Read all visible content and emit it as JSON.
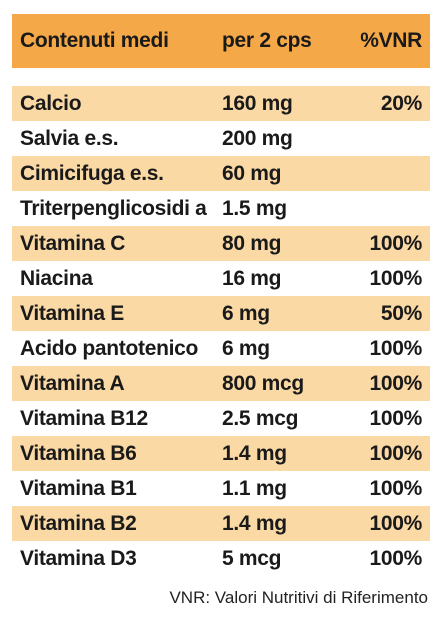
{
  "table": {
    "headers": [
      "Contenuti medi",
      "per 2 cps",
      "%VNR"
    ],
    "rows": [
      {
        "name": "Calcio",
        "amount": "160 mg",
        "vnr": "20%"
      },
      {
        "name": "Salvia e.s.",
        "amount": "200 mg",
        "vnr": ""
      },
      {
        "name": "Cimicifuga e.s.",
        "amount": "60 mg",
        "vnr": ""
      },
      {
        "name": "Triterpenglicosidi a",
        "amount": "1.5 mg",
        "vnr": ""
      },
      {
        "name": "Vitamina C",
        "amount": "80 mg",
        "vnr": "100%"
      },
      {
        "name": "Niacina",
        "amount": "16 mg",
        "vnr": "100%"
      },
      {
        "name": "Vitamina E",
        "amount": "6 mg",
        "vnr": "50%"
      },
      {
        "name": "Acido pantotenico",
        "amount": "6 mg",
        "vnr": "100%"
      },
      {
        "name": "Vitamina A",
        "amount": "800 mcg",
        "vnr": "100%"
      },
      {
        "name": "Vitamina B12",
        "amount": "2.5 mcg",
        "vnr": "100%"
      },
      {
        "name": "Vitamina B6",
        "amount": "1.4 mg",
        "vnr": "100%"
      },
      {
        "name": "Vitamina B1",
        "amount": "1.1 mg",
        "vnr": "100%"
      },
      {
        "name": "Vitamina B2",
        "amount": "1.4 mg",
        "vnr": "100%"
      },
      {
        "name": "Vitamina D3",
        "amount": "5 mcg",
        "vnr": "100%"
      }
    ]
  },
  "footnote": "VNR: Valori Nutritivi di Riferimento",
  "colors": {
    "header_bg": "#f4a847",
    "stripe_bg": "#fbd9a5"
  }
}
